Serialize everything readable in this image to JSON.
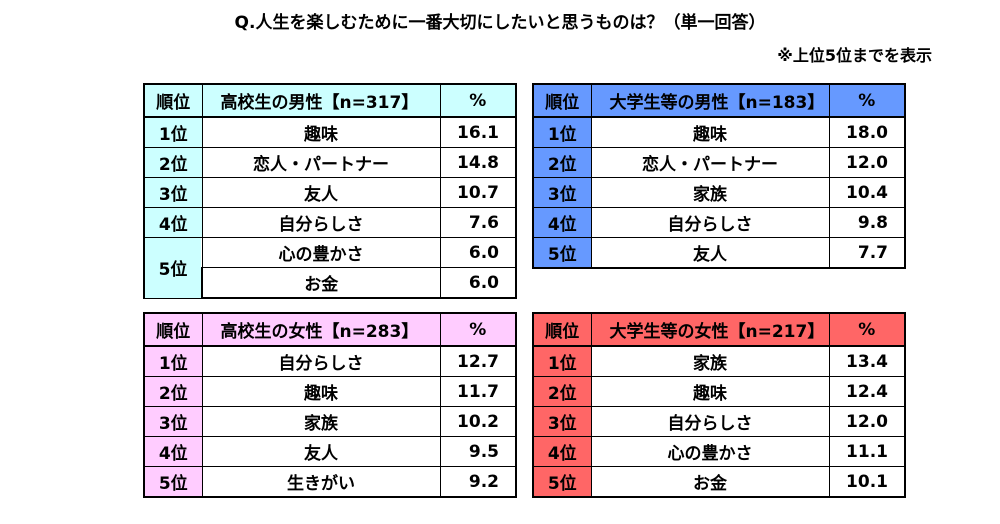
{
  "title": "Q.人生を楽しむために一番大切にしたいと思うものは？（単一回答）",
  "note": "※上位5位までを表示",
  "tables": {
    "hs_male": {
      "color": "#ccffff",
      "header": {
        "rank": "順位",
        "group": "高校生の男性【n=317】",
        "pct": "%"
      },
      "rows": [
        {
          "rank": "1位",
          "item": "趣味",
          "pct": "16.1"
        },
        {
          "rank": "2位",
          "item": "恋人・パートナー",
          "pct": "14.8"
        },
        {
          "rank": "3位",
          "item": "友人",
          "pct": "10.7"
        },
        {
          "rank": "4位",
          "item": "自分らしさ",
          "pct": "7.6"
        },
        {
          "rank": "5位",
          "item": "心の豊かさ",
          "pct": "6.0"
        },
        {
          "rank": "",
          "item": "お金",
          "pct": "6.0"
        }
      ]
    },
    "univ_male": {
      "color": "#6699ff",
      "header": {
        "rank": "順位",
        "group": "大学生等の男性【n=183】",
        "pct": "%"
      },
      "rows": [
        {
          "rank": "1位",
          "item": "趣味",
          "pct": "18.0"
        },
        {
          "rank": "2位",
          "item": "恋人・パートナー",
          "pct": "12.0"
        },
        {
          "rank": "3位",
          "item": "家族",
          "pct": "10.4"
        },
        {
          "rank": "4位",
          "item": "自分らしさ",
          "pct": "9.8"
        },
        {
          "rank": "5位",
          "item": "友人",
          "pct": "7.7"
        }
      ]
    },
    "hs_female": {
      "color": "#ffccff",
      "header": {
        "rank": "順位",
        "group": "高校生の女性【n=283】",
        "pct": "%"
      },
      "rows": [
        {
          "rank": "1位",
          "item": "自分らしさ",
          "pct": "12.7"
        },
        {
          "rank": "2位",
          "item": "趣味",
          "pct": "11.7"
        },
        {
          "rank": "3位",
          "item": "家族",
          "pct": "10.2"
        },
        {
          "rank": "4位",
          "item": "友人",
          "pct": "9.5"
        },
        {
          "rank": "5位",
          "item": "生きがい",
          "pct": "9.2"
        }
      ]
    },
    "univ_female": {
      "color": "#ff6666",
      "header": {
        "rank": "順位",
        "group": "大学生等の女性【n=217】",
        "pct": "%"
      },
      "rows": [
        {
          "rank": "1位",
          "item": "家族",
          "pct": "13.4"
        },
        {
          "rank": "2位",
          "item": "趣味",
          "pct": "12.4"
        },
        {
          "rank": "3位",
          "item": "自分らしさ",
          "pct": "12.0"
        },
        {
          "rank": "4位",
          "item": "心の豊かさ",
          "pct": "11.1"
        },
        {
          "rank": "5位",
          "item": "お金",
          "pct": "10.1"
        }
      ]
    }
  }
}
